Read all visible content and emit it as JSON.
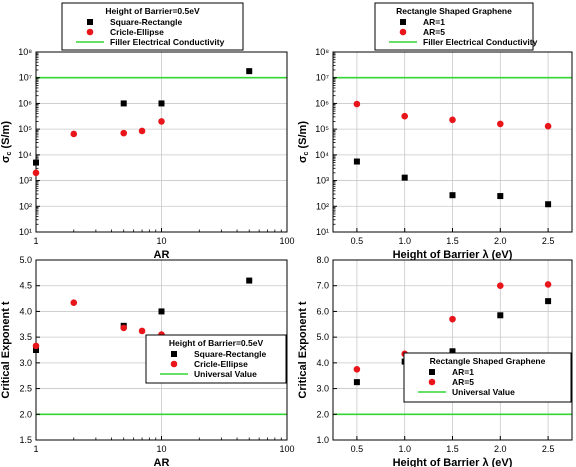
{
  "chart_data": [
    {
      "type": "scatter",
      "xscale": "log",
      "yscale": "log",
      "xlim": [
        1,
        100
      ],
      "ylim": [
        10,
        100000000
      ],
      "xlabel": "AR",
      "ylabel": "σ_c (S/m)",
      "xticks": [
        {
          "v": 1,
          "t": "1"
        },
        {
          "v": 10,
          "t": "10"
        },
        {
          "v": 100,
          "t": "100"
        }
      ],
      "yticks": [
        {
          "v": 10,
          "t": "10¹"
        },
        {
          "v": 100,
          "t": "10²"
        },
        {
          "v": 1000,
          "t": "10³"
        },
        {
          "v": 10000,
          "t": "10⁴"
        },
        {
          "v": 100000,
          "t": "10⁵"
        },
        {
          "v": 1000000,
          "t": "10⁶"
        },
        {
          "v": 10000000,
          "t": "10⁷"
        },
        {
          "v": 100000000,
          "t": "10⁸"
        }
      ],
      "grid": true,
      "legend_title": "Height of Barrier=0.5eV",
      "legend_position": "top",
      "series": [
        {
          "name": "Square-Rectangle",
          "marker": "square",
          "color": "#000000",
          "x": [
            1,
            5,
            10,
            50
          ],
          "y": [
            5000,
            1000000,
            1000000,
            18000000
          ]
        },
        {
          "name": "Cricle-Ellipse",
          "marker": "circle",
          "color": "#e8161b",
          "x": [
            1,
            2,
            5,
            7,
            10
          ],
          "y": [
            2000,
            65000,
            70000,
            85000,
            200000
          ]
        }
      ],
      "hline": {
        "name": "Filler Electrical Conductivity",
        "y": 10000000,
        "color": "#33d633"
      }
    },
    {
      "type": "scatter",
      "xscale": "linear",
      "yscale": "log",
      "xlim": [
        0.25,
        2.75
      ],
      "ylim": [
        10,
        100000000
      ],
      "xlabel": "Height of Barrier λ (eV)",
      "ylabel": "σ_c (S/m)",
      "xticks": [
        {
          "v": 0.5,
          "t": "0.5"
        },
        {
          "v": 1.0,
          "t": "1.0"
        },
        {
          "v": 1.5,
          "t": "1.5"
        },
        {
          "v": 2.0,
          "t": "2.0"
        },
        {
          "v": 2.5,
          "t": "2.5"
        }
      ],
      "yticks": [
        {
          "v": 10,
          "t": "10¹"
        },
        {
          "v": 100,
          "t": "10²"
        },
        {
          "v": 1000,
          "t": "10³"
        },
        {
          "v": 10000,
          "t": "10⁴"
        },
        {
          "v": 100000,
          "t": "10⁵"
        },
        {
          "v": 1000000,
          "t": "10⁶"
        },
        {
          "v": 10000000,
          "t": "10⁷"
        },
        {
          "v": 100000000,
          "t": "10⁸"
        }
      ],
      "grid": true,
      "legend_title": "Rectangle Shaped Graphene",
      "legend_position": "top",
      "series": [
        {
          "name": "AR=1",
          "marker": "square",
          "color": "#000000",
          "x": [
            0.5,
            1.0,
            1.5,
            2.0,
            2.5
          ],
          "y": [
            5500,
            1300,
            270,
            250,
            120
          ]
        },
        {
          "name": "AR=5",
          "marker": "circle",
          "color": "#e8161b",
          "x": [
            0.5,
            1.0,
            1.5,
            2.0,
            2.5
          ],
          "y": [
            950000,
            320000,
            230000,
            160000,
            130000
          ]
        }
      ],
      "hline": {
        "name": "Filler Electrical Conductivity",
        "y": 10000000,
        "color": "#33d633"
      }
    },
    {
      "type": "scatter",
      "xscale": "log",
      "yscale": "linear",
      "xlim": [
        1,
        100
      ],
      "ylim": [
        1.5,
        5.0
      ],
      "xlabel": "AR",
      "ylabel": "Critical Exponent t",
      "xticks": [
        {
          "v": 1,
          "t": "1"
        },
        {
          "v": 10,
          "t": "10"
        },
        {
          "v": 100,
          "t": "100"
        }
      ],
      "yticks": [
        {
          "v": 1.5,
          "t": "1.5"
        },
        {
          "v": 2.0,
          "t": "2.0"
        },
        {
          "v": 2.5,
          "t": "2.5"
        },
        {
          "v": 3.0,
          "t": "3.0"
        },
        {
          "v": 3.5,
          "t": "3.5"
        },
        {
          "v": 4.0,
          "t": "4.0"
        },
        {
          "v": 4.5,
          "t": "4.5"
        },
        {
          "v": 5.0,
          "t": "5.0"
        }
      ],
      "grid": true,
      "legend_title": "Height of Barrier=0.5eV",
      "legend_position": "bottom-right",
      "series": [
        {
          "name": "Square-Rectangle",
          "marker": "square",
          "color": "#000000",
          "x": [
            1,
            5,
            10,
            50
          ],
          "y": [
            3.25,
            3.72,
            4.0,
            4.6
          ]
        },
        {
          "name": "Cricle-Ellipse",
          "marker": "circle",
          "color": "#e8161b",
          "x": [
            1,
            2,
            5,
            7,
            10
          ],
          "y": [
            3.33,
            4.17,
            3.68,
            3.62,
            3.55
          ]
        }
      ],
      "hline": {
        "name": "Universal Value",
        "y": 2.0,
        "color": "#33d633"
      }
    },
    {
      "type": "scatter",
      "xscale": "linear",
      "yscale": "linear",
      "xlim": [
        0.25,
        2.75
      ],
      "ylim": [
        1.0,
        8.0
      ],
      "xlabel": "Height of Barrier λ (eV)",
      "ylabel": "Critical Exponent t",
      "xticks": [
        {
          "v": 0.5,
          "t": "0.5"
        },
        {
          "v": 1.0,
          "t": "1.0"
        },
        {
          "v": 1.5,
          "t": "1.5"
        },
        {
          "v": 2.0,
          "t": "2.0"
        },
        {
          "v": 2.5,
          "t": "2.5"
        }
      ],
      "yticks": [
        {
          "v": 1.0,
          "t": "1.0"
        },
        {
          "v": 2.0,
          "t": "2.0"
        },
        {
          "v": 3.0,
          "t": "3.0"
        },
        {
          "v": 4.0,
          "t": "4.0"
        },
        {
          "v": 5.0,
          "t": "5.0"
        },
        {
          "v": 6.0,
          "t": "6.0"
        },
        {
          "v": 7.0,
          "t": "7.0"
        },
        {
          "v": 8.0,
          "t": "8.0"
        }
      ],
      "grid": true,
      "legend_title": "Rectangle Shaped Graphene",
      "legend_position": "bottom-right",
      "series": [
        {
          "name": "AR=1",
          "marker": "square",
          "color": "#000000",
          "x": [
            0.5,
            1.0,
            1.5,
            2.0,
            2.5
          ],
          "y": [
            3.25,
            4.05,
            4.45,
            5.85,
            6.4
          ]
        },
        {
          "name": "AR=5",
          "marker": "circle",
          "color": "#e8161b",
          "x": [
            0.5,
            1.0,
            1.5,
            2.0,
            2.5
          ],
          "y": [
            3.75,
            4.35,
            5.7,
            7.0,
            7.05
          ]
        }
      ],
      "hline": {
        "name": "Universal Value",
        "y": 2.0,
        "color": "#33d633"
      }
    }
  ]
}
